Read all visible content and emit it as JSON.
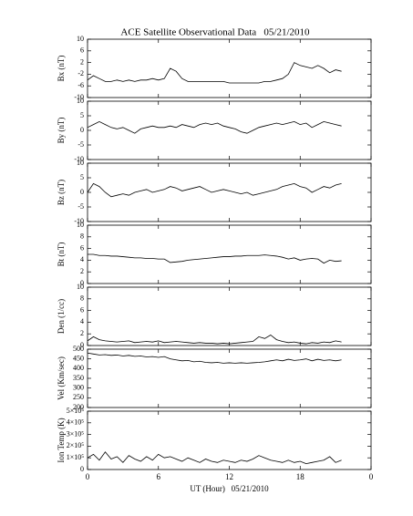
{
  "title": "ACE Satellite Observational Data   05/21/2010",
  "chart_data": [
    {
      "type": "line",
      "ylabel": "Bx (nT)",
      "xlim": [
        0,
        24
      ],
      "ylim": [
        -10,
        10
      ],
      "yticks": [
        10,
        6,
        2,
        -2,
        -6,
        -10
      ],
      "x": [
        0,
        0.5,
        1,
        1.5,
        2,
        2.5,
        3,
        3.5,
        4,
        4.5,
        5,
        5.5,
        6,
        6.5,
        7,
        7.5,
        8,
        8.5,
        9,
        9.5,
        10,
        10.5,
        11,
        11.5,
        12,
        12.5,
        13,
        13.5,
        14,
        14.5,
        15,
        15.5,
        16,
        16.5,
        17,
        17.5,
        18,
        18.5,
        19,
        19.5,
        20,
        20.5,
        21,
        21.5
      ],
      "color": "#000000",
      "values": [
        -4,
        -2.5,
        -3.5,
        -4.5,
        -4.5,
        -4,
        -4.5,
        -4,
        -4.5,
        -4,
        -4,
        -3.5,
        -4,
        -3.5,
        0,
        -1,
        -3.5,
        -4.5,
        -4.5,
        -4.5,
        -4.5,
        -4.5,
        -4.5,
        -4.5,
        -5,
        -5,
        -5,
        -5,
        -5,
        -5,
        -4.5,
        -4.5,
        -4,
        -3.5,
        -2,
        2,
        1,
        0.5,
        0,
        1,
        0,
        -1.5,
        -0.5,
        -1
      ]
    },
    {
      "type": "line",
      "ylabel": "By (nT)",
      "xlim": [
        0,
        24
      ],
      "ylim": [
        -10,
        10
      ],
      "yticks": [
        10,
        5,
        0,
        -5,
        -10
      ],
      "x": [
        0,
        0.5,
        1,
        1.5,
        2,
        2.5,
        3,
        3.5,
        4,
        4.5,
        5,
        5.5,
        6,
        6.5,
        7,
        7.5,
        8,
        8.5,
        9,
        9.5,
        10,
        10.5,
        11,
        11.5,
        12,
        12.5,
        13,
        13.5,
        14,
        14.5,
        15,
        15.5,
        16,
        16.5,
        17,
        17.5,
        18,
        18.5,
        19,
        19.5,
        20,
        20.5,
        21,
        21.5
      ],
      "color": "#000000",
      "values": [
        1,
        2,
        3,
        2,
        1,
        0.5,
        1,
        0,
        -1,
        0.5,
        1,
        1.5,
        1,
        1,
        1.5,
        1,
        2,
        1.5,
        1,
        2,
        2.5,
        2,
        2.5,
        1.5,
        1,
        0.5,
        -0.5,
        -1,
        0,
        1,
        1.5,
        2,
        2.5,
        2,
        2.5,
        3,
        2,
        2.5,
        1,
        2,
        3,
        2.5,
        2,
        1.5
      ]
    },
    {
      "type": "line",
      "ylabel": "Bz (nT)",
      "xlim": [
        0,
        24
      ],
      "ylim": [
        -10,
        10
      ],
      "yticks": [
        10,
        5,
        0,
        -5,
        -10
      ],
      "x": [
        0,
        0.5,
        1,
        1.5,
        2,
        2.5,
        3,
        3.5,
        4,
        4.5,
        5,
        5.5,
        6,
        6.5,
        7,
        7.5,
        8,
        8.5,
        9,
        9.5,
        10,
        10.5,
        11,
        11.5,
        12,
        12.5,
        13,
        13.5,
        14,
        14.5,
        15,
        15.5,
        16,
        16.5,
        17,
        17.5,
        18,
        18.5,
        19,
        19.5,
        20,
        20.5,
        21,
        21.5
      ],
      "color": "#000000",
      "values": [
        0,
        3,
        2,
        0,
        -1.5,
        -1,
        -0.5,
        -1,
        0,
        0.5,
        1,
        0,
        0.5,
        1,
        2,
        1.5,
        0.5,
        1,
        1.5,
        2,
        1,
        0,
        0.5,
        1,
        0.5,
        0,
        -0.5,
        0,
        -1,
        -0.5,
        0,
        0.5,
        1,
        2,
        2.5,
        3,
        2,
        1.5,
        0,
        1,
        2,
        1.5,
        2.5,
        3
      ]
    },
    {
      "type": "line",
      "ylabel": "Bt (nT)",
      "xlim": [
        0,
        24
      ],
      "ylim": [
        0,
        10
      ],
      "yticks": [
        10,
        8,
        6,
        4,
        2,
        0
      ],
      "x": [
        0,
        0.5,
        1,
        1.5,
        2,
        2.5,
        3,
        3.5,
        4,
        4.5,
        5,
        5.5,
        6,
        6.5,
        7,
        7.5,
        8,
        8.5,
        9,
        9.5,
        10,
        10.5,
        11,
        11.5,
        12,
        12.5,
        13,
        13.5,
        14,
        14.5,
        15,
        15.5,
        16,
        16.5,
        17,
        17.5,
        18,
        18.5,
        19,
        19.5,
        20,
        20.5,
        21,
        21.5
      ],
      "color": "#000000",
      "values": [
        5,
        5,
        4.8,
        4.8,
        4.7,
        4.7,
        4.6,
        4.5,
        4.4,
        4.4,
        4.3,
        4.3,
        4.2,
        4.2,
        3.6,
        3.7,
        3.8,
        4,
        4.1,
        4.2,
        4.3,
        4.4,
        4.5,
        4.6,
        4.6,
        4.7,
        4.7,
        4.8,
        4.8,
        4.8,
        4.9,
        4.8,
        4.7,
        4.5,
        4.2,
        4.4,
        4,
        4.2,
        4.3,
        4.2,
        3.5,
        4,
        3.8,
        3.9
      ]
    },
    {
      "type": "line",
      "ylabel": "Den (1/cc)",
      "xlim": [
        0,
        24
      ],
      "ylim": [
        0,
        10
      ],
      "yticks": [
        10,
        8,
        6,
        4,
        2,
        0
      ],
      "x": [
        0,
        0.5,
        1,
        1.5,
        2,
        2.5,
        3,
        3.5,
        4,
        4.5,
        5,
        5.5,
        6,
        6.5,
        7,
        7.5,
        8,
        8.5,
        9,
        9.5,
        10,
        10.5,
        11,
        11.5,
        12,
        12.5,
        13,
        13.5,
        14,
        14.5,
        15,
        15.5,
        16,
        16.5,
        17,
        17.5,
        18,
        18.5,
        19,
        19.5,
        20,
        20.5,
        21,
        21.5
      ],
      "color": "#000000",
      "values": [
        0.8,
        1.5,
        1,
        0.8,
        0.7,
        0.6,
        0.7,
        0.8,
        0.5,
        0.6,
        0.7,
        0.6,
        0.8,
        0.5,
        0.6,
        0.7,
        0.6,
        0.5,
        0.4,
        0.5,
        0.4,
        0.4,
        0.3,
        0.4,
        0.3,
        0.4,
        0.5,
        0.6,
        0.7,
        1.5,
        1.2,
        1.8,
        1,
        0.7,
        0.5,
        0.6,
        0.4,
        0.3,
        0.5,
        0.4,
        0.6,
        0.5,
        0.8,
        0.6
      ]
    },
    {
      "type": "line",
      "ylabel": "Vel (Km/sec)",
      "xlim": [
        0,
        24
      ],
      "ylim": [
        200,
        500
      ],
      "yticks": [
        500,
        450,
        400,
        350,
        300,
        250,
        200
      ],
      "x": [
        0,
        0.5,
        1,
        1.5,
        2,
        2.5,
        3,
        3.5,
        4,
        4.5,
        5,
        5.5,
        6,
        6.5,
        7,
        7.5,
        8,
        8.5,
        9,
        9.5,
        10,
        10.5,
        11,
        11.5,
        12,
        12.5,
        13,
        13.5,
        14,
        14.5,
        15,
        15.5,
        16,
        16.5,
        17,
        17.5,
        18,
        18.5,
        19,
        19.5,
        20,
        20.5,
        21,
        21.5
      ],
      "color": "#000000",
      "values": [
        480,
        475,
        470,
        472,
        468,
        470,
        465,
        468,
        463,
        465,
        460,
        462,
        458,
        462,
        450,
        445,
        440,
        442,
        435,
        438,
        432,
        430,
        432,
        428,
        430,
        428,
        430,
        428,
        430,
        432,
        435,
        440,
        445,
        440,
        448,
        442,
        445,
        450,
        440,
        448,
        442,
        445,
        440,
        445
      ]
    },
    {
      "type": "line",
      "ylabel": "Ion Temp (K)",
      "xlabel": "UT (Hour)   05/21/2010",
      "xlim": [
        0,
        24
      ],
      "ylim": [
        0,
        500000
      ],
      "yticks": [
        {
          "value": 500000,
          "label": "5×10⁵"
        },
        {
          "value": 400000,
          "label": "4×10⁵"
        },
        {
          "value": 300000,
          "label": "3×10⁵"
        },
        {
          "value": 200000,
          "label": "2×10⁵"
        },
        {
          "value": 100000,
          "label": "1×10⁵"
        },
        0
      ],
      "xticks": [
        0,
        6,
        12,
        18,
        {
          "value": 24,
          "label": "0"
        }
      ],
      "x": [
        0,
        0.5,
        1,
        1.5,
        2,
        2.5,
        3,
        3.5,
        4,
        4.5,
        5,
        5.5,
        6,
        6.5,
        7,
        7.5,
        8,
        8.5,
        9,
        9.5,
        10,
        10.5,
        11,
        11.5,
        12,
        12.5,
        13,
        13.5,
        14,
        14.5,
        15,
        15.5,
        16,
        16.5,
        17,
        17.5,
        18,
        18.5,
        19,
        19.5,
        20,
        20.5,
        21,
        21.5
      ],
      "color": "#000000",
      "values": [
        100000,
        130000,
        80000,
        150000,
        90000,
        110000,
        60000,
        120000,
        90000,
        70000,
        110000,
        80000,
        130000,
        100000,
        110000,
        90000,
        70000,
        100000,
        80000,
        60000,
        90000,
        70000,
        60000,
        80000,
        70000,
        60000,
        80000,
        70000,
        90000,
        120000,
        100000,
        80000,
        70000,
        60000,
        80000,
        60000,
        70000,
        50000,
        60000,
        70000,
        80000,
        110000,
        60000,
        80000
      ]
    }
  ]
}
